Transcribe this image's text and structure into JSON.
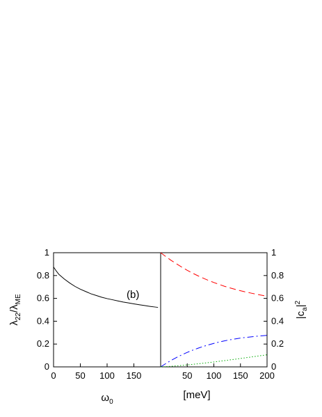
{
  "chart_data": [
    {
      "type": "line",
      "panel_label": "(b)",
      "xlabel": "ω",
      "xlabel_sub": "0",
      "ylabel_parts": [
        "λ",
        "22",
        "/λ",
        "ME"
      ],
      "xlim": [
        0,
        200
      ],
      "ylim": [
        0,
        1
      ],
      "xticks": [
        0,
        50,
        100,
        150
      ],
      "yticks": [
        0,
        0.2,
        0.4,
        0.6,
        0.8,
        1
      ],
      "ytick_labels": [
        "0",
        "0.2",
        "0.4",
        "0.6",
        "0.8",
        "1"
      ],
      "series": [
        {
          "color": "#000000",
          "dash": "solid",
          "x": [
            0,
            5,
            10,
            20,
            30,
            40,
            50,
            60,
            70,
            80,
            90,
            100,
            110,
            120,
            130,
            140,
            150,
            160,
            170,
            180,
            190,
            195
          ],
          "y": [
            0.875,
            0.84,
            0.81,
            0.77,
            0.735,
            0.705,
            0.68,
            0.66,
            0.64,
            0.625,
            0.61,
            0.598,
            0.588,
            0.578,
            0.568,
            0.56,
            0.552,
            0.544,
            0.537,
            0.53,
            0.524,
            0.521
          ]
        }
      ]
    },
    {
      "type": "line",
      "xlabel": "[meV]",
      "ylabel_parts": [
        "|c",
        "a",
        "|",
        "2"
      ],
      "xlim": [
        0,
        200
      ],
      "ylim": [
        0,
        1
      ],
      "xticks": [
        50,
        100,
        150,
        200
      ],
      "yticks": [
        0,
        0.2,
        0.4,
        0.6,
        0.8,
        1
      ],
      "ytick_labels": [
        "0",
        "0.2",
        "0.4",
        "0.6",
        "0.8",
        "1"
      ],
      "series": [
        {
          "color": "#ff0000",
          "dash": "dashed",
          "x": [
            0,
            10,
            20,
            30,
            40,
            50,
            60,
            70,
            80,
            90,
            100,
            110,
            120,
            130,
            140,
            150,
            160,
            170,
            180,
            190,
            200
          ],
          "y": [
            1.0,
            0.965,
            0.932,
            0.902,
            0.873,
            0.846,
            0.821,
            0.798,
            0.777,
            0.757,
            0.739,
            0.722,
            0.706,
            0.692,
            0.679,
            0.667,
            0.656,
            0.646,
            0.636,
            0.627,
            0.619
          ]
        },
        {
          "color": "#0000ff",
          "dash": "dash-dot",
          "x": [
            0,
            10,
            20,
            30,
            40,
            50,
            60,
            70,
            80,
            90,
            100,
            110,
            120,
            130,
            140,
            150,
            160,
            170,
            180,
            190,
            200
          ],
          "y": [
            0.0,
            0.03,
            0.058,
            0.083,
            0.106,
            0.127,
            0.146,
            0.163,
            0.179,
            0.193,
            0.206,
            0.218,
            0.228,
            0.237,
            0.245,
            0.252,
            0.258,
            0.263,
            0.268,
            0.272,
            0.276
          ]
        },
        {
          "color": "#00aa00",
          "dash": "dotted",
          "x": [
            0,
            20,
            40,
            60,
            80,
            100,
            120,
            140,
            160,
            180,
            200
          ],
          "y": [
            0.0,
            0.005,
            0.013,
            0.022,
            0.032,
            0.043,
            0.055,
            0.067,
            0.08,
            0.093,
            0.106
          ]
        }
      ]
    }
  ]
}
